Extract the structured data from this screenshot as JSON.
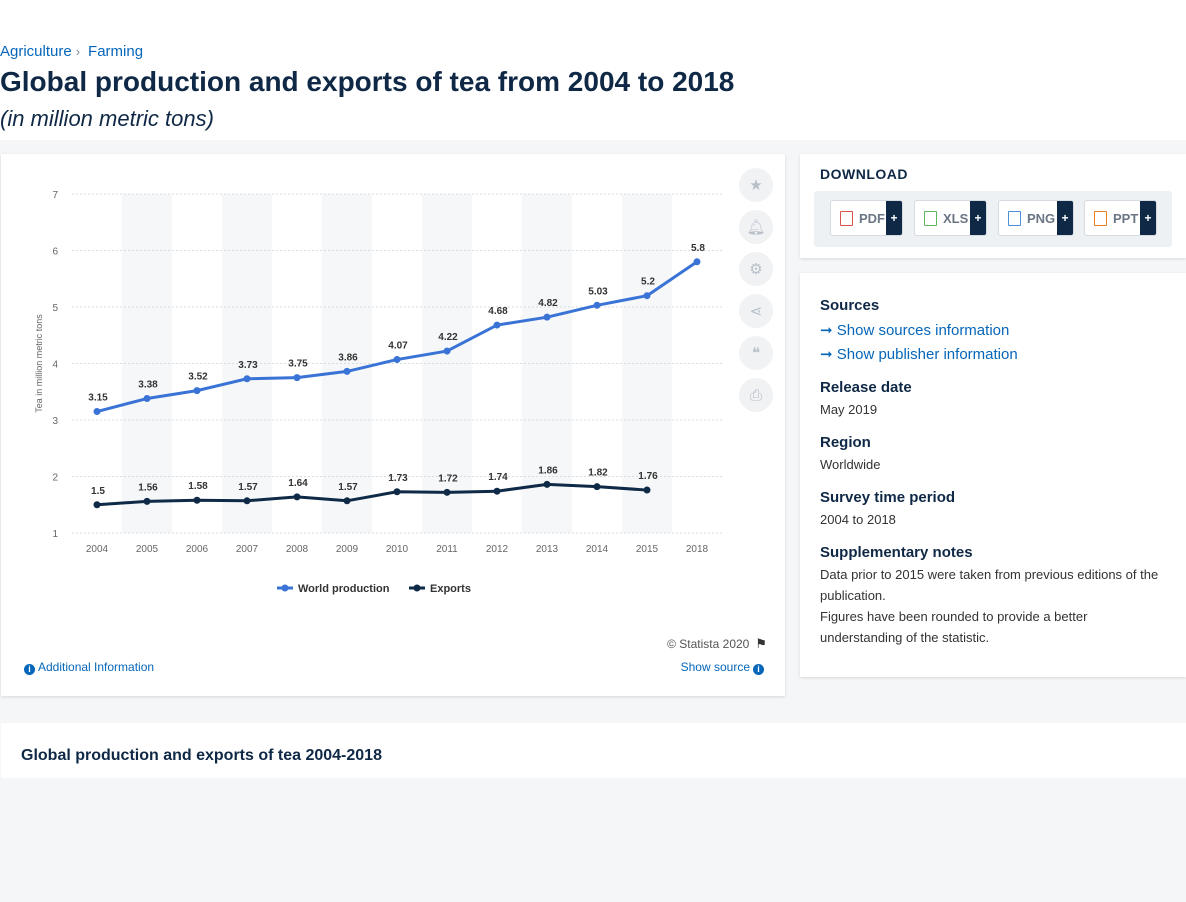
{
  "breadcrumb": {
    "items": [
      "Agriculture",
      "Farming"
    ],
    "separator": "›"
  },
  "header": {
    "title": "Global production and exports of tea from 2004 to 2018",
    "subtitle": "(in million metric tons)"
  },
  "chart_data": {
    "type": "line",
    "categories": [
      "2004",
      "2005",
      "2006",
      "2007",
      "2008",
      "2009",
      "2010",
      "2011",
      "2012",
      "2013",
      "2014",
      "2015",
      "2018"
    ],
    "series": [
      {
        "name": "World production",
        "color": "#3a73d6",
        "values": [
          3.15,
          3.38,
          3.52,
          3.73,
          3.75,
          3.86,
          4.07,
          4.22,
          4.68,
          4.82,
          5.03,
          5.2,
          5.8
        ]
      },
      {
        "name": "Exports",
        "color": "#0e2a47",
        "values": [
          1.5,
          1.56,
          1.58,
          1.57,
          1.64,
          1.57,
          1.73,
          1.72,
          1.74,
          1.86,
          1.82,
          1.76,
          null
        ]
      }
    ],
    "ylabel": "Tea in million metric tons",
    "yticks": [
      1,
      2,
      3,
      4,
      5,
      6,
      7
    ],
    "ylim": [
      1,
      7
    ],
    "grid": true,
    "legend": "bottom-center"
  },
  "chart_footer": {
    "copyright": "© Statista 2020",
    "additional_info": "Additional Information",
    "show_source": "Show source"
  },
  "toolbar": {
    "icons": [
      "star-icon",
      "bell-icon",
      "gear-icon",
      "share-icon",
      "quote-icon",
      "print-icon"
    ]
  },
  "download": {
    "title": "DOWNLOAD",
    "buttons": [
      {
        "label": "PDF",
        "color": "#d9534f"
      },
      {
        "label": "XLS",
        "color": "#5cb85c"
      },
      {
        "label": "PNG",
        "color": "#4a90d9"
      },
      {
        "label": "PPT",
        "color": "#e67e22"
      }
    ],
    "plus": "+"
  },
  "meta": {
    "sources_heading": "Sources",
    "show_sources": "Show sources information",
    "show_publisher": "Show publisher information",
    "release_heading": "Release date",
    "release_value": "May 2019",
    "region_heading": "Region",
    "region_value": "Worldwide",
    "survey_heading": "Survey time period",
    "survey_value": "2004 to 2018",
    "notes_heading": "Supplementary notes",
    "note_1": "Data prior to 2015 were taken from previous editions of the publication.",
    "note_2": "Figures have been rounded to provide a better understanding of the statistic."
  },
  "bottom": {
    "title": "Global production and exports of tea 2004-2018"
  }
}
